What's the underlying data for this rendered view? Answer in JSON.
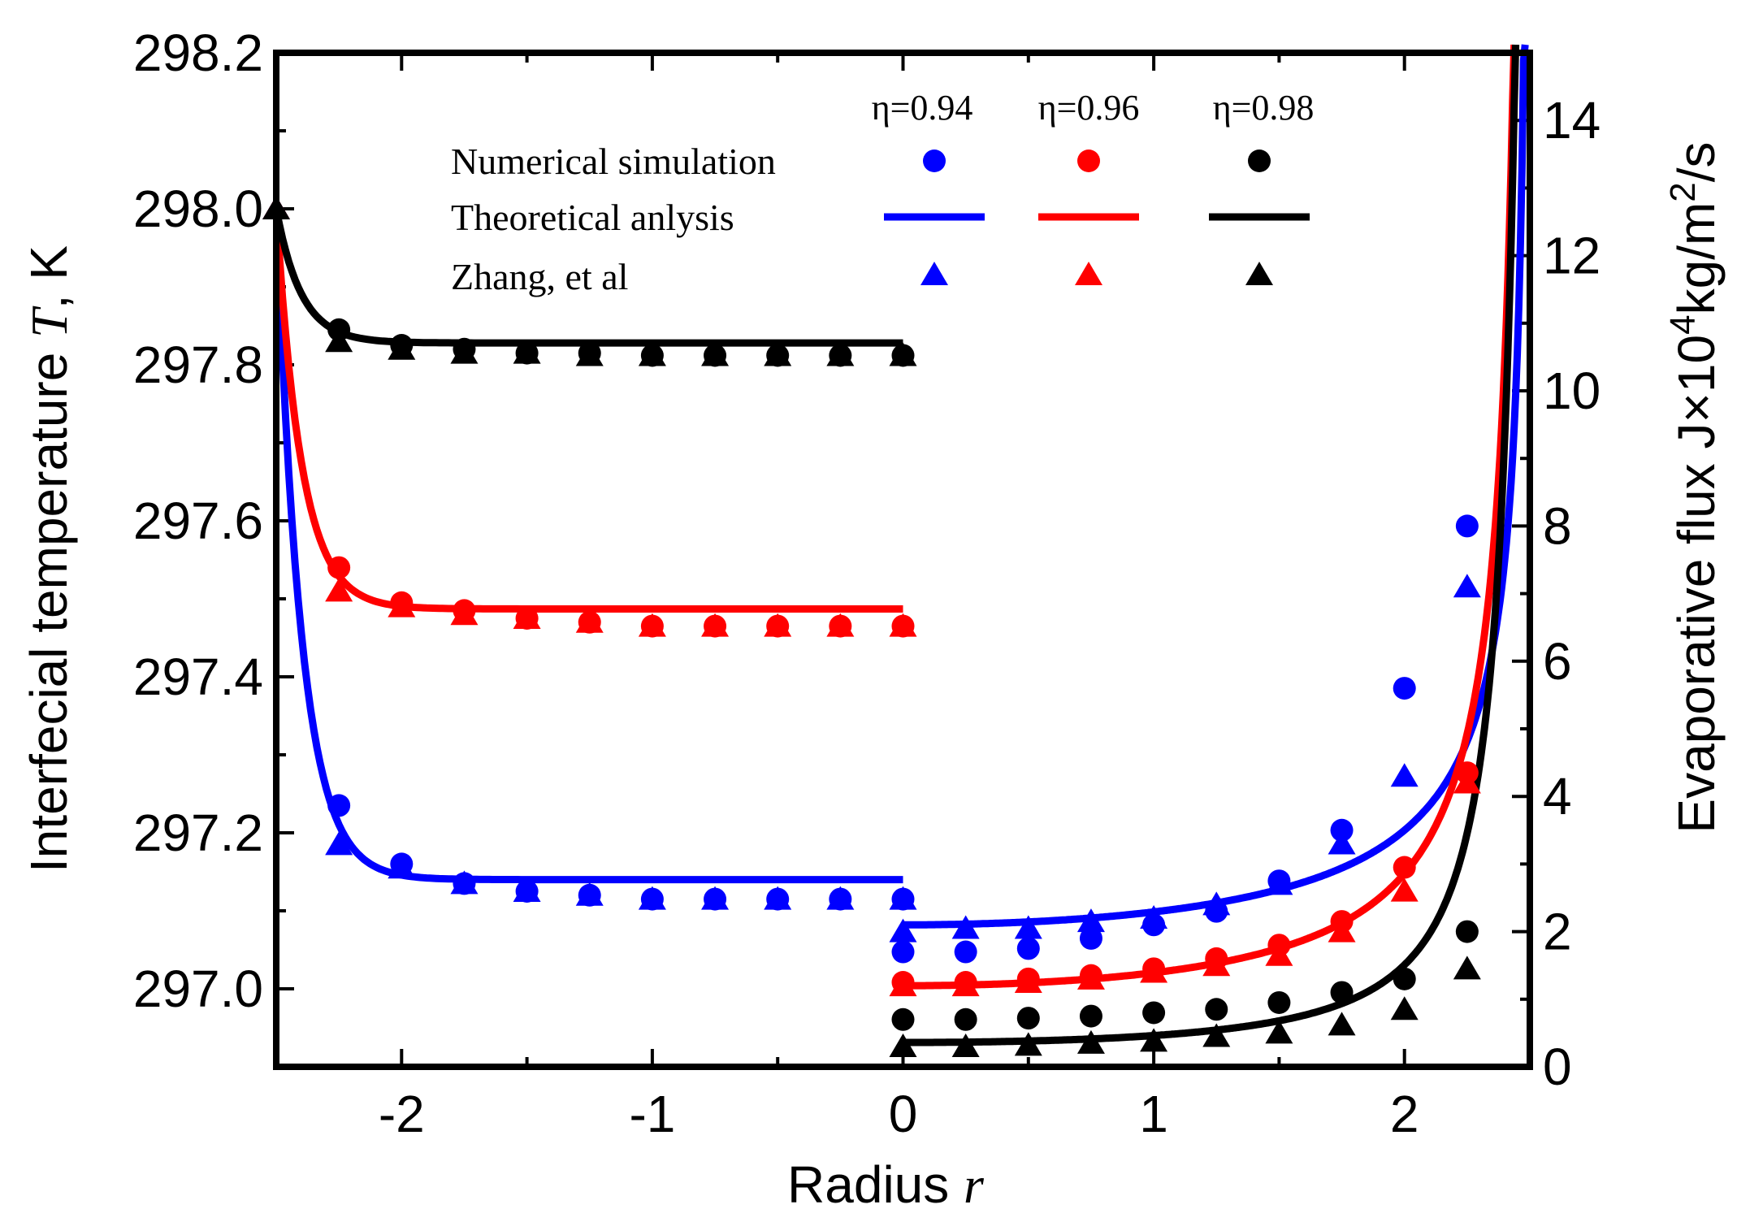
{
  "chart_data": {
    "type": "line+scatter",
    "xlabel": "Radius",
    "xlabel_var": "r",
    "ylabel_left": "Interfecial temperature",
    "ylabel_left_var": "T",
    "ylabel_left_unit": ", K",
    "ylabel_right_prefix": "Evaporative flux J×10",
    "ylabel_right_exp": "4",
    "ylabel_right_mid": "kg/m",
    "ylabel_right_exp2": "2",
    "ylabel_right_suffix": "/s",
    "xlim": [
      -2.5,
      2.5
    ],
    "ylim_left": [
      296.9,
      298.2
    ],
    "ylim_right": [
      0,
      15
    ],
    "x_ticks": [
      -2,
      -1,
      0,
      1,
      2
    ],
    "x_tick_labels": [
      "-2",
      "-1",
      "0",
      "1",
      "2"
    ],
    "y_left_ticks": [
      297.0,
      297.2,
      297.4,
      297.6,
      297.8,
      298.0,
      298.2
    ],
    "y_left_tick_labels": [
      "297.0",
      "297.2",
      "297.4",
      "297.6",
      "297.8",
      "298.0",
      "298.2"
    ],
    "y_right_ticks": [
      0,
      2,
      4,
      6,
      8,
      10,
      12,
      14
    ],
    "y_right_tick_labels": [
      "0",
      "2",
      "4",
      "6",
      "8",
      "10",
      "12",
      "14"
    ],
    "legend": {
      "rows": [
        "Numerical simulation",
        "Theoretical anlysis",
        "Zhang, et al"
      ],
      "columns": [
        "η=0.94",
        "η=0.96",
        "η=0.98"
      ]
    },
    "colors": [
      "#0000ff",
      "#ff0000",
      "#000000"
    ],
    "series": [
      {
        "name": "η=0.94",
        "temperature": {
          "theory": {
            "plateau": 297.14,
            "start": 298.0,
            "decay": 0.1
          },
          "numerical": {
            "x": [
              -2.25,
              -2.0,
              -1.75,
              -1.5,
              -1.25,
              -1.0,
              -0.75,
              -0.5,
              -0.25,
              0.0
            ],
            "y": [
              297.235,
              297.16,
              297.135,
              297.125,
              297.12,
              297.115,
              297.115,
              297.115,
              297.115,
              297.115
            ]
          },
          "zhang": {
            "x": [
              -2.5,
              -2.25,
              -2.0,
              -1.75,
              -1.5,
              -1.25,
              -1.0,
              -0.75,
              -0.5,
              -0.25,
              0.0
            ],
            "y": [
              298.0,
              297.185,
              297.155,
              297.135,
              297.125,
              297.12,
              297.115,
              297.115,
              297.115,
              297.115,
              297.115
            ]
          }
        },
        "flux": {
          "theory": {
            "J0": 2.1,
            "R": 2.5,
            "p": 0.5
          },
          "numerical": {
            "x": [
              0.0,
              0.25,
              0.5,
              0.75,
              1.0,
              1.25,
              1.5,
              1.75,
              2.0,
              2.25
            ],
            "y": [
              1.7,
              1.7,
              1.75,
              1.9,
              2.1,
              2.3,
              2.75,
              3.5,
              5.6,
              8.0
            ]
          },
          "zhang": {
            "x": [
              0.0,
              0.25,
              0.5,
              0.75,
              1.0,
              1.25,
              1.5,
              1.75,
              2.0,
              2.25
            ],
            "y": [
              2.0,
              2.05,
              2.05,
              2.15,
              2.2,
              2.4,
              2.7,
              3.3,
              4.3,
              7.1
            ]
          }
        }
      },
      {
        "name": "η=0.96",
        "temperature": {
          "theory": {
            "plateau": 297.487,
            "start": 298.0,
            "decay": 0.1
          },
          "numerical": {
            "x": [
              -2.25,
              -2.0,
              -1.75,
              -1.5,
              -1.25,
              -1.0,
              -0.75,
              -0.5,
              -0.25,
              0.0
            ],
            "y": [
              297.54,
              297.495,
              297.485,
              297.475,
              297.47,
              297.465,
              297.465,
              297.465,
              297.465,
              297.465
            ]
          },
          "zhang": {
            "x": [
              -2.5,
              -2.25,
              -2.0,
              -1.75,
              -1.5,
              -1.25,
              -1.0,
              -0.75,
              -0.5,
              -0.25,
              0.0
            ],
            "y": [
              298.0,
              297.51,
              297.49,
              297.48,
              297.475,
              297.47,
              297.465,
              297.465,
              297.465,
              297.465,
              297.465
            ]
          }
        },
        "flux": {
          "theory": {
            "J0": 1.2,
            "R": 2.5,
            "p": 0.85
          },
          "numerical": {
            "x": [
              0.0,
              0.25,
              0.5,
              0.75,
              1.0,
              1.25,
              1.5,
              1.75,
              2.0,
              2.25
            ],
            "y": [
              1.25,
              1.25,
              1.3,
              1.35,
              1.45,
              1.6,
              1.8,
              2.15,
              2.95,
              4.35
            ]
          },
          "zhang": {
            "x": [
              0.0,
              0.25,
              0.5,
              0.75,
              1.0,
              1.25,
              1.5,
              1.75,
              2.0,
              2.25
            ],
            "y": [
              1.2,
              1.2,
              1.25,
              1.3,
              1.4,
              1.5,
              1.65,
              2.0,
              2.6,
              4.2
            ]
          }
        }
      },
      {
        "name": "η=0.98",
        "temperature": {
          "theory": {
            "plateau": 297.828,
            "start": 298.0,
            "decay": 0.1
          },
          "numerical": {
            "x": [
              -2.25,
              -2.0,
              -1.75,
              -1.5,
              -1.25,
              -1.0,
              -0.75,
              -0.5,
              -0.25,
              0.0
            ],
            "y": [
              297.845,
              297.825,
              297.82,
              297.815,
              297.815,
              297.812,
              297.812,
              297.812,
              297.812,
              297.812
            ]
          },
          "zhang": {
            "x": [
              -2.5,
              -2.25,
              -2.0,
              -1.75,
              -1.5,
              -1.25,
              -1.0,
              -0.75,
              -0.5,
              -0.25,
              0.0
            ],
            "y": [
              298.0,
              297.83,
              297.82,
              297.815,
              297.815,
              297.812,
              297.812,
              297.812,
              297.812,
              297.812,
              297.812
            ]
          }
        },
        "flux": {
          "theory": {
            "J0": 0.36,
            "R": 2.55,
            "p": 1.5
          },
          "numerical": {
            "x": [
              0.0,
              0.25,
              0.5,
              0.75,
              1.0,
              1.25,
              1.5,
              1.75,
              2.0,
              2.25
            ],
            "y": [
              0.7,
              0.7,
              0.72,
              0.75,
              0.8,
              0.85,
              0.95,
              1.1,
              1.3,
              2.0
            ]
          },
          "zhang": {
            "x": [
              0.0,
              0.25,
              0.5,
              0.75,
              1.0,
              1.25,
              1.5,
              1.75,
              2.0,
              2.25
            ],
            "y": [
              0.3,
              0.3,
              0.32,
              0.35,
              0.38,
              0.45,
              0.5,
              0.62,
              0.85,
              1.45
            ]
          }
        }
      }
    ]
  }
}
